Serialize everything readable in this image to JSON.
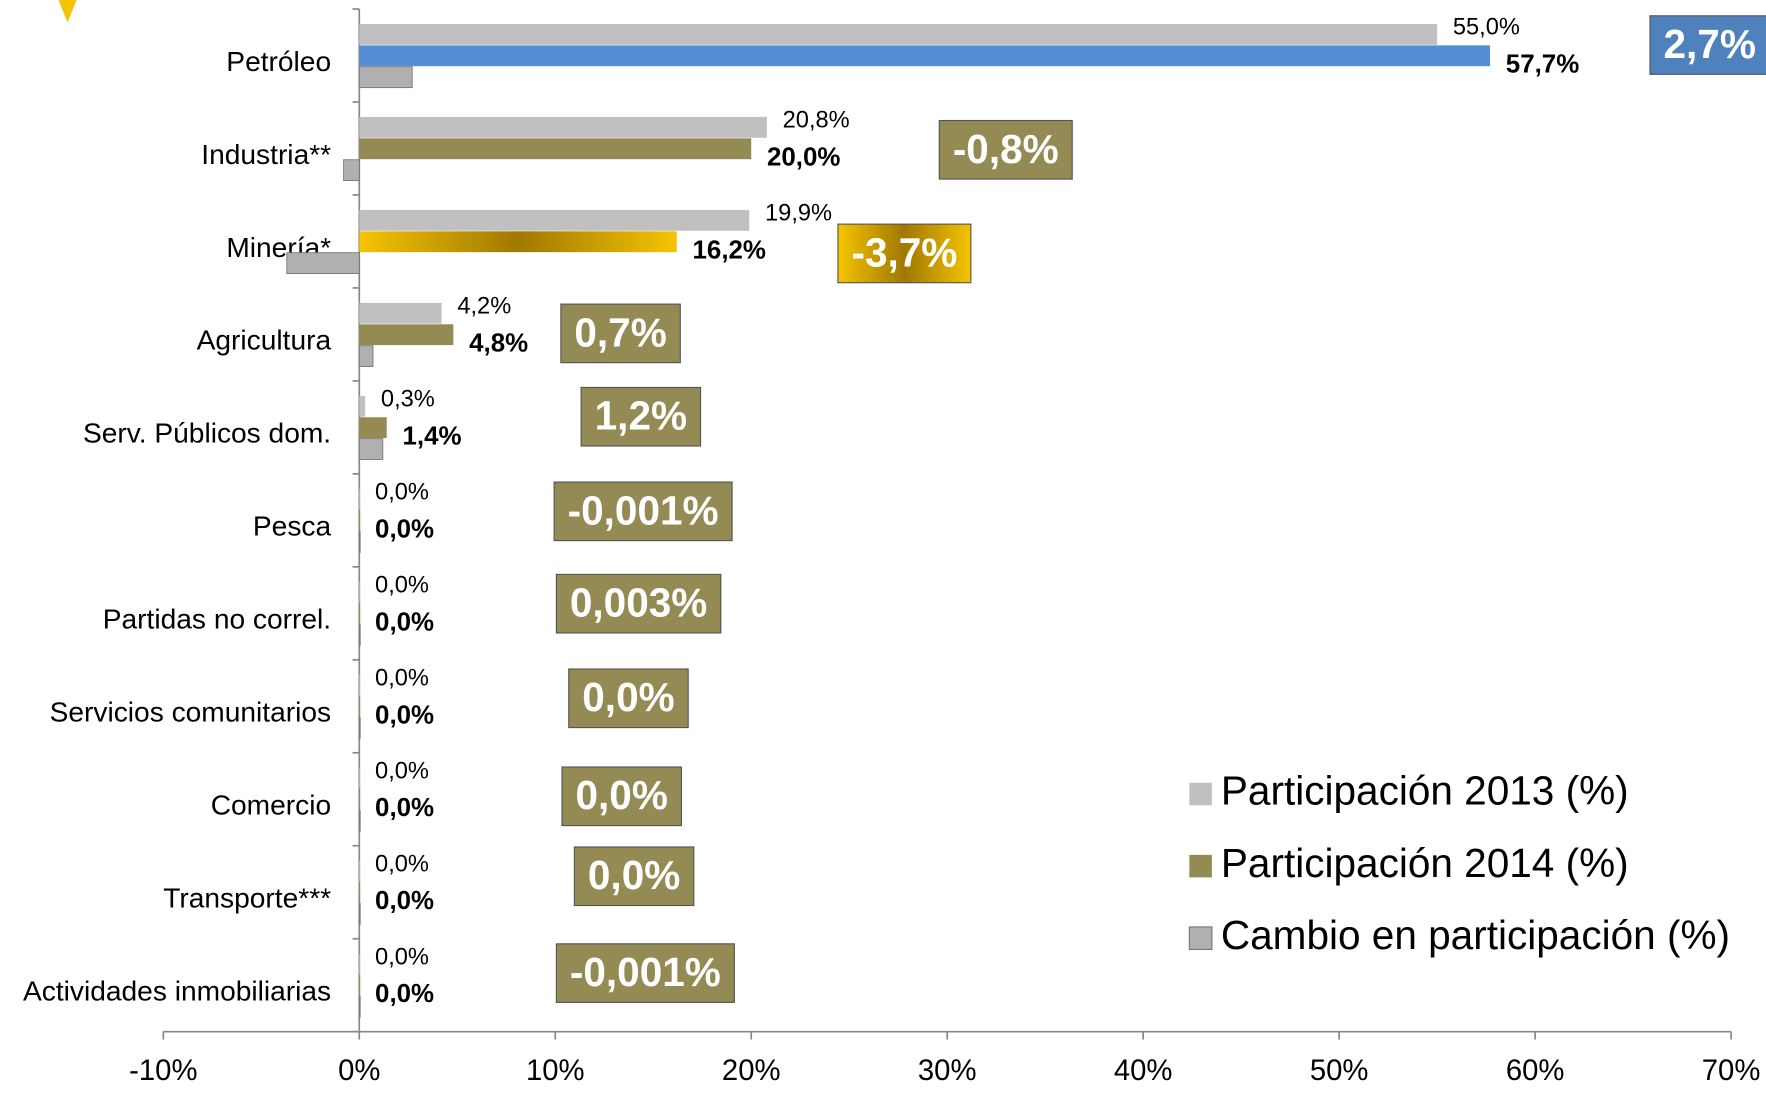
{
  "chart_data": {
    "type": "bar",
    "orientation": "horizontal",
    "categories": [
      "Petróleo",
      "Industria**",
      "Minería*",
      "Agricultura",
      "Serv. Públicos dom.",
      "Pesca",
      "Partidas no correl.",
      "Servicios comunitarios",
      "Comercio",
      "Transporte***",
      "Actividades inmobiliarias"
    ],
    "series": [
      {
        "name": "Participación 2013 (%)",
        "color": "#c0c0c0",
        "values": [
          55.0,
          20.8,
          19.9,
          4.2,
          0.3,
          0.0,
          0.0,
          0.0,
          0.0,
          0.0,
          0.0
        ],
        "value_labels": [
          "55,0%",
          "20,8%",
          "19,9%",
          "4,2%",
          "0,3%",
          "0,0%",
          "0,0%",
          "0,0%",
          "0,0%",
          "0,0%",
          "0,0%"
        ]
      },
      {
        "name": "Participación 2014 (%)",
        "color": "#948a54",
        "colors": [
          "#558ed5",
          "#948a54",
          "#f5c400",
          "#948a54",
          "#948a54",
          "#948a54",
          "#948a54",
          "#948a54",
          "#948a54",
          "#948a54",
          "#948a54"
        ],
        "values": [
          57.7,
          20.0,
          16.2,
          4.8,
          1.4,
          0.0,
          0.0,
          0.0,
          0.0,
          0.0,
          0.0
        ],
        "value_labels": [
          "57,7%",
          "20,0%",
          "16,2%",
          "4,8%",
          "1,4%",
          "0,0%",
          "0,0%",
          "0,0%",
          "0,0%",
          "0,0%",
          "0,0%"
        ]
      },
      {
        "name": "Cambio en participación (%)",
        "color": "#b0b0b0",
        "label_colors": [
          "#4f81bd",
          "#948a54",
          "#f0b800",
          "#948a54",
          "#948a54",
          "#948a54",
          "#948a54",
          "#948a54",
          "#948a54",
          "#948a54",
          "#948a54"
        ],
        "values": [
          2.7,
          -0.8,
          -3.7,
          0.7,
          1.2,
          -0.001,
          0.003,
          0.0,
          0.0,
          0.0,
          -0.001
        ],
        "value_labels": [
          "2,7%",
          "-0,8%",
          "-3,7%",
          "0,7%",
          "1,2%",
          "-0,001%",
          "0,003%",
          "0,0%",
          "0,0%",
          "0,0%",
          "-0,001%"
        ]
      }
    ],
    "xlim": [
      -10,
      70
    ],
    "xticks": [
      {
        "value": -10,
        "label": "-10%"
      },
      {
        "value": 0,
        "label": "0%"
      },
      {
        "value": 10,
        "label": "10%"
      },
      {
        "value": 20,
        "label": "20%"
      },
      {
        "value": 30,
        "label": "30%"
      },
      {
        "value": 40,
        "label": "40%"
      },
      {
        "value": 50,
        "label": "50%"
      },
      {
        "value": 60,
        "label": "60%"
      },
      {
        "value": 70,
        "label": "70%"
      }
    ],
    "legend": "lower right"
  }
}
